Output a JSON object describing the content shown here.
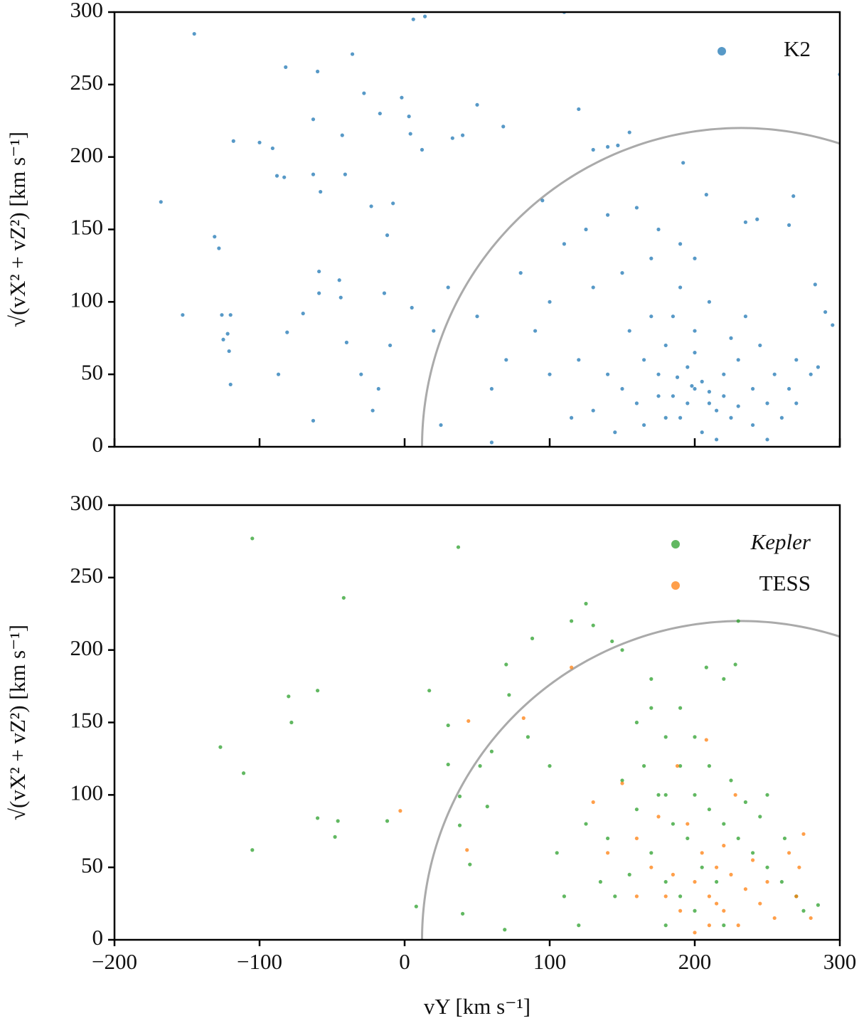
{
  "chart_data": [
    {
      "type": "scatter",
      "ylabel": "√(vX² + vZ²) [km s⁻¹]",
      "xlim": [
        -200,
        300
      ],
      "xticks": [
        -200,
        -100,
        0,
        100,
        200,
        300
      ],
      "show_xtick_labels": false,
      "ylim": [
        0,
        300
      ],
      "yticks": [
        0,
        50,
        100,
        150,
        200,
        250,
        300
      ],
      "legend": "upper right",
      "curve": {
        "center_x": 232,
        "radius": 220,
        "color": "#aaaaaa"
      },
      "series": [
        {
          "name": "K2",
          "color": "#1f77b4",
          "italic": false,
          "x": [
            -145,
            -168,
            -131,
            -128,
            -153,
            -126,
            -120,
            -122,
            -125,
            -121,
            -120,
            -87,
            -81,
            -118,
            -100,
            -91,
            -88,
            -83,
            -82,
            -60,
            -63,
            -63,
            -58,
            -59,
            -59,
            -45,
            -44,
            -41,
            -43,
            -36,
            -28,
            -23,
            -17,
            -2,
            3,
            4,
            5,
            12,
            -8,
            -12,
            -14,
            -10,
            -18,
            -22,
            -30,
            -40,
            -63,
            -70,
            6,
            14,
            33,
            50,
            40,
            68,
            60,
            25,
            120,
            130,
            140,
            147,
            155,
            192,
            208,
            235,
            243,
            265,
            268,
            283,
            290,
            295,
            300,
            280,
            285,
            270,
            110,
            95,
            110,
            80,
            90,
            120,
            130,
            150,
            170,
            180,
            200,
            210,
            190,
            220,
            230,
            205,
            215,
            195,
            185,
            225,
            240,
            250,
            200,
            175,
            160,
            165,
            245,
            260,
            235,
            210,
            190,
            170,
            155,
            140,
            130,
            215,
            200,
            185,
            225,
            255,
            180,
            195,
            205,
            210,
            198,
            188,
            220,
            230,
            175,
            165,
            150,
            145,
            240,
            250,
            265,
            270,
            115,
            100,
            60,
            70,
            50,
            30,
            20,
            100,
            125,
            140,
            160,
            175,
            190,
            200
          ],
          "y": [
            285,
            169,
            145,
            137,
            91,
            91,
            91,
            78,
            74,
            66,
            43,
            50,
            79,
            211,
            210,
            206,
            187,
            186,
            262,
            259,
            226,
            188,
            176,
            121,
            106,
            115,
            103,
            188,
            215,
            271,
            244,
            166,
            230,
            241,
            228,
            216,
            96,
            205,
            168,
            146,
            106,
            70,
            40,
            25,
            50,
            72,
            18,
            92,
            295,
            297,
            213,
            236,
            215,
            221,
            3,
            15,
            233,
            205,
            207,
            208,
            217,
            196,
            174,
            155,
            157,
            153,
            173,
            112,
            93,
            84,
            257,
            50,
            55,
            30,
            300,
            170,
            140,
            120,
            80,
            60,
            110,
            120,
            90,
            70,
            40,
            30,
            20,
            50,
            60,
            10,
            25,
            55,
            35,
            20,
            40,
            30,
            80,
            50,
            30,
            15,
            70,
            20,
            90,
            100,
            110,
            130,
            80,
            50,
            25,
            5,
            65,
            90,
            75,
            50,
            20,
            30,
            45,
            38,
            42,
            48,
            35,
            28,
            35,
            60,
            40,
            10,
            15,
            5,
            40,
            60,
            20,
            50,
            40,
            60,
            90,
            110,
            80,
            100,
            150,
            160,
            165,
            150,
            140,
            130
          ]
        }
      ]
    },
    {
      "type": "scatter",
      "ylabel": "√(vX² + vZ²) [km s⁻¹]",
      "xlabel": "vY [km s⁻¹]",
      "xlim": [
        -200,
        300
      ],
      "xticks": [
        {
          "value": -200,
          "label": "−200"
        },
        {
          "value": -100,
          "label": "−100"
        },
        0,
        100,
        200,
        300
      ],
      "show_xtick_labels": true,
      "ylim": [
        0,
        300
      ],
      "yticks": [
        0,
        50,
        100,
        150,
        200,
        250,
        300
      ],
      "legend": "upper right",
      "curve": {
        "center_x": 232,
        "radius": 220,
        "color": "#aaaaaa"
      },
      "series": [
        {
          "name": "Kepler",
          "color": "#2ca02c",
          "italic": true,
          "x": [
            -105,
            37,
            -42,
            -127,
            -111,
            -105,
            -80,
            -78,
            -60,
            -60,
            -46,
            -48,
            -12,
            17,
            30,
            30,
            38,
            38,
            40,
            8,
            45,
            52,
            57,
            60,
            70,
            72,
            69,
            88,
            115,
            125,
            130,
            143,
            150,
            208,
            228,
            230,
            220,
            100,
            85,
            105,
            110,
            120,
            140,
            150,
            160,
            170,
            180,
            190,
            200,
            210,
            220,
            230,
            240,
            250,
            260,
            270,
            275,
            285,
            170,
            180,
            190,
            200,
            185,
            175,
            165,
            195,
            205,
            215,
            225,
            235,
            245,
            155,
            145,
            160,
            180,
            200,
            210,
            190,
            170,
            180,
            220,
            250,
            262,
            135,
            125
          ],
          "y": [
            277,
            271,
            236,
            133,
            115,
            62,
            168,
            150,
            172,
            84,
            82,
            71,
            82,
            172,
            148,
            121,
            99,
            79,
            18,
            23,
            52,
            120,
            92,
            130,
            190,
            169,
            7,
            208,
            220,
            232,
            217,
            206,
            200,
            188,
            190,
            220,
            180,
            120,
            140,
            60,
            30,
            10,
            70,
            110,
            150,
            160,
            140,
            120,
            100,
            90,
            80,
            70,
            60,
            50,
            40,
            30,
            20,
            24,
            60,
            40,
            30,
            20,
            80,
            100,
            120,
            70,
            50,
            40,
            110,
            95,
            85,
            45,
            30,
            90,
            100,
            140,
            120,
            160,
            180,
            10,
            10,
            100,
            70,
            40,
            80
          ]
        },
        {
          "name": "TESS",
          "color": "#ff7f0e",
          "italic": false,
          "x": [
            -3,
            43,
            44,
            82,
            115,
            130,
            150,
            160,
            170,
            180,
            190,
            200,
            210,
            220,
            230,
            215,
            205,
            195,
            225,
            235,
            245,
            255,
            270,
            275,
            265,
            210,
            200,
            185,
            175,
            240,
            220,
            228,
            208,
            188,
            160,
            140,
            272,
            280,
            250,
            215
          ],
          "y": [
            89,
            62,
            151,
            153,
            188,
            95,
            108,
            70,
            50,
            30,
            20,
            40,
            30,
            20,
            10,
            50,
            60,
            80,
            45,
            35,
            25,
            15,
            30,
            73,
            60,
            10,
            5,
            45,
            85,
            55,
            65,
            100,
            138,
            120,
            30,
            60,
            50,
            15,
            40,
            25
          ]
        }
      ]
    }
  ]
}
